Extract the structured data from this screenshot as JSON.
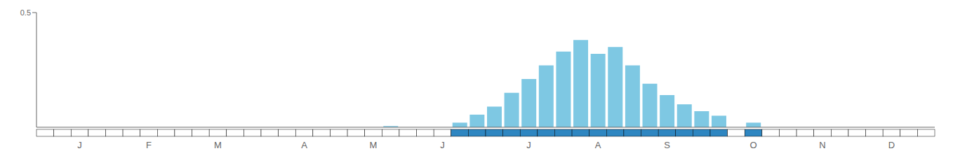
{
  "chart_data": {
    "type": "bar",
    "categories": [
      null,
      null,
      "J",
      null,
      null,
      null,
      "F",
      null,
      null,
      null,
      "M",
      null,
      null,
      null,
      null,
      "A",
      null,
      null,
      null,
      "M",
      null,
      null,
      null,
      "J",
      null,
      null,
      null,
      null,
      "J",
      null,
      null,
      null,
      "A",
      null,
      null,
      null,
      "S",
      null,
      null,
      null,
      null,
      "O",
      null,
      null,
      null,
      "N",
      null,
      null,
      null,
      "D",
      null,
      null
    ],
    "values": [
      0,
      0,
      0,
      0,
      0,
      0,
      0,
      0,
      0,
      0,
      0,
      0,
      0,
      0,
      0,
      0,
      0,
      0,
      0,
      0,
      0.005,
      0,
      0,
      0,
      0.02,
      0.055,
      0.09,
      0.15,
      0.21,
      0.27,
      0.33,
      0.38,
      0.32,
      0.35,
      0.27,
      0.19,
      0.14,
      0.1,
      0.07,
      0.05,
      0,
      0.02,
      0,
      0,
      0,
      0,
      0,
      0,
      0,
      0,
      0,
      0
    ],
    "color": "#7ec8e3",
    "presence": {
      "values": [
        0,
        0,
        0,
        0,
        0,
        0,
        0,
        0,
        0,
        0,
        0,
        0,
        0,
        0,
        0,
        0,
        0,
        0,
        0,
        0,
        0,
        0,
        0,
        0,
        1,
        1,
        1,
        1,
        1,
        1,
        1,
        1,
        1,
        1,
        1,
        1,
        1,
        1,
        1,
        1,
        0,
        1,
        0,
        0,
        0,
        0,
        0,
        0,
        0,
        0,
        0,
        0
      ],
      "colors": [
        "#ffffff",
        "#2e86c1"
      ]
    },
    "ylim": [
      0,
      0.5
    ],
    "yticks": [
      0.5
    ]
  }
}
